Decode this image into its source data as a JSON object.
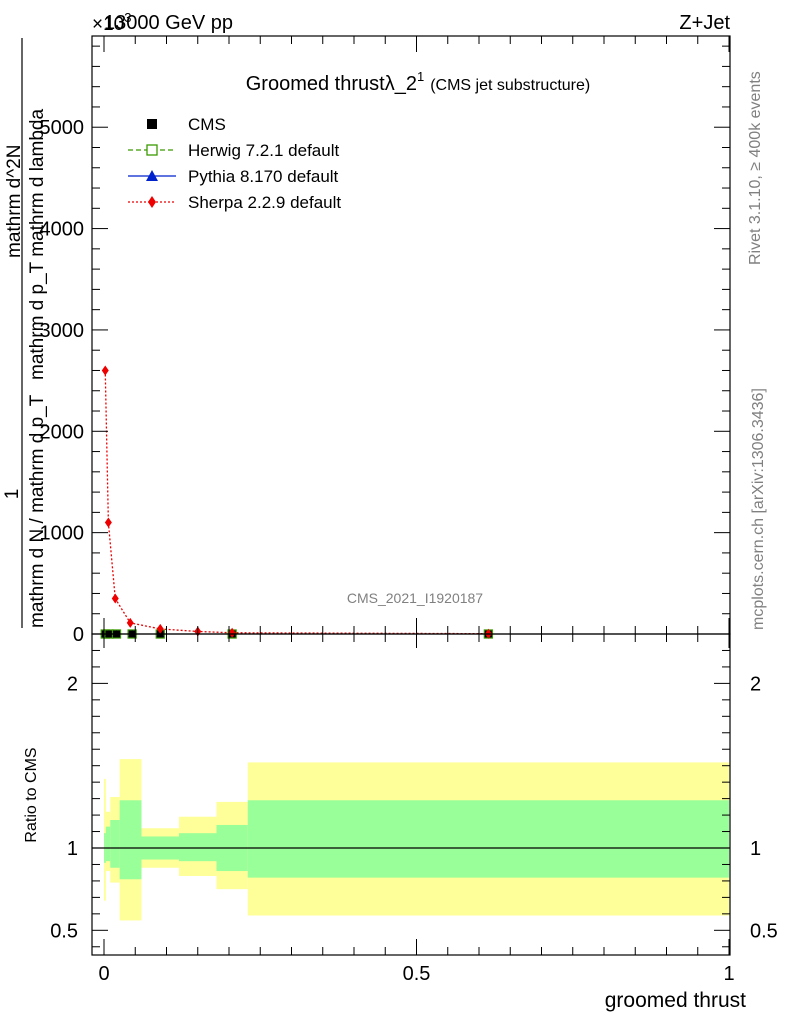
{
  "header": {
    "left": "13000 GeV pp",
    "right": "Z+Jet",
    "exponent": "×10",
    "exponent_power": "3"
  },
  "title": {
    "main": "Groomed thrust",
    "lambda": "λ_2",
    "superscript": "1",
    "suffix": "(CMS jet substructure)"
  },
  "side_text": {
    "rivet": "Rivet 3.1.10, ≥ 400k events",
    "mcplots": "mcplots.cern.ch [arXiv:1306.3436]"
  },
  "analysis_id": "CMS_2021_I1920187",
  "y_label": {
    "numerator": "1",
    "denominator": "mathrm d N / mathrm d p_T",
    "right_top": "mathrm d^2N",
    "right_bottom": "mathrm d p_T mathrm d lambda"
  },
  "ratio_label": "Ratio to CMS",
  "x_label": "groomed thrust",
  "legend": [
    {
      "name": "CMS",
      "color": "#000000",
      "marker": "square-filled",
      "line": "none"
    },
    {
      "name": "Herwig 7.2.1 default",
      "color": "#3a9a00",
      "marker": "square-open",
      "line": "dashed"
    },
    {
      "name": "Pythia 8.170 default",
      "color": "#0022cc",
      "marker": "triangle",
      "line": "solid"
    },
    {
      "name": "Sherpa 2.2.9 default",
      "color": "#ee0000",
      "marker": "diamond",
      "line": "dotted"
    }
  ],
  "chart_data": {
    "type": "line",
    "x_range": [
      0,
      1
    ],
    "x_ticks": [
      "0",
      "0.5",
      "1"
    ],
    "main_panel": {
      "y_range": [
        0,
        5900
      ],
      "y_ticks": [
        {
          "v": 0,
          "label": "0"
        },
        {
          "v": 1000,
          "label": "1000"
        },
        {
          "v": 2000,
          "label": "2000"
        },
        {
          "v": 3000,
          "label": "3000"
        },
        {
          "v": 4000,
          "label": "4000"
        },
        {
          "v": 5000,
          "label": "5000"
        }
      ],
      "series": [
        {
          "name": "Sherpa 2.2.9 default",
          "points": [
            [
              0.002,
              2600
            ],
            [
              0.007,
              1100
            ],
            [
              0.018,
              350
            ],
            [
              0.042,
              110
            ],
            [
              0.09,
              50
            ],
            [
              0.15,
              25
            ],
            [
              0.205,
              12
            ],
            [
              0.615,
              3
            ]
          ]
        },
        {
          "name": "CMS",
          "points": [
            [
              0.002,
              0
            ],
            [
              0.008,
              0
            ],
            [
              0.02,
              0
            ],
            [
              0.045,
              0
            ],
            [
              0.09,
              0
            ],
            [
              0.205,
              0
            ],
            [
              0.615,
              0
            ]
          ]
        }
      ]
    },
    "ratio_panel": {
      "y_range": [
        0.35,
        2.3
      ],
      "y_ticks": [
        {
          "v": 0.5,
          "label": "0.5"
        },
        {
          "v": 1,
          "label": "1"
        },
        {
          "v": 2,
          "label": "2"
        }
      ],
      "reference": 1,
      "bins": [
        {
          "x0": 0.0,
          "x1": 0.003,
          "band1": [
            0.91,
            1.09
          ],
          "band2": [
            0.68,
            1.42
          ]
        },
        {
          "x0": 0.003,
          "x1": 0.01,
          "band1": [
            0.92,
            1.13
          ],
          "band2": [
            0.86,
            1.22
          ]
        },
        {
          "x0": 0.01,
          "x1": 0.025,
          "band1": [
            0.88,
            1.17
          ],
          "band2": [
            0.79,
            1.31
          ]
        },
        {
          "x0": 0.025,
          "x1": 0.06,
          "band1": [
            0.81,
            1.29
          ],
          "band2": [
            0.56,
            1.54
          ]
        },
        {
          "x0": 0.06,
          "x1": 0.12,
          "band1": [
            0.93,
            1.07
          ],
          "band2": [
            0.88,
            1.12
          ]
        },
        {
          "x0": 0.12,
          "x1": 0.18,
          "band1": [
            0.92,
            1.09
          ],
          "band2": [
            0.83,
            1.19
          ]
        },
        {
          "x0": 0.18,
          "x1": 0.23,
          "band1": [
            0.86,
            1.14
          ],
          "band2": [
            0.75,
            1.28
          ]
        },
        {
          "x0": 0.23,
          "x1": 1.0,
          "band1": [
            0.82,
            1.29
          ],
          "band2": [
            0.59,
            1.52
          ]
        }
      ]
    }
  },
  "colors": {
    "band_inner": "#99ff99",
    "band_outer": "#ffff99",
    "sherpa": "#ee0000",
    "herwig": "#3a9a00",
    "pythia": "#0022cc"
  }
}
